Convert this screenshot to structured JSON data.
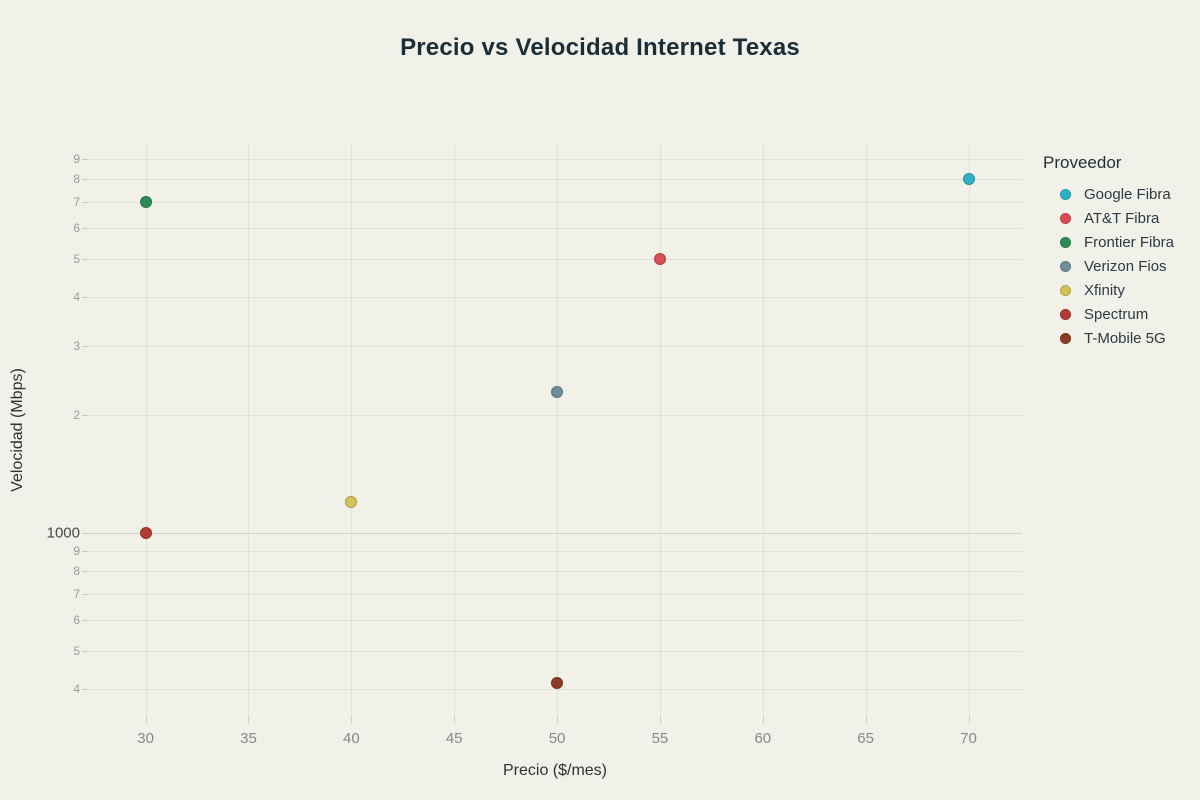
{
  "title": "Precio vs Velocidad Internet Texas",
  "chart_data": {
    "type": "scatter",
    "title": "Precio vs Velocidad Internet Texas",
    "xlabel": "Precio ($/mes)",
    "ylabel": "Velocidad (Mbps)",
    "x_scale": "linear",
    "y_scale": "log",
    "xlim": [
      27.2,
      72.6
    ],
    "ylim": [
      340,
      9900
    ],
    "grid": true,
    "x_ticks": [
      30,
      35,
      40,
      45,
      50,
      55,
      60,
      65,
      70
    ],
    "y_ticks": [
      {
        "value": 9000,
        "label": "9",
        "major": false
      },
      {
        "value": 8000,
        "label": "8",
        "major": false
      },
      {
        "value": 7000,
        "label": "7",
        "major": false
      },
      {
        "value": 6000,
        "label": "6",
        "major": false
      },
      {
        "value": 5000,
        "label": "5",
        "major": false
      },
      {
        "value": 4000,
        "label": "4",
        "major": false
      },
      {
        "value": 3000,
        "label": "3",
        "major": false
      },
      {
        "value": 2000,
        "label": "2",
        "major": false
      },
      {
        "value": 1000,
        "label": "1000",
        "major": true
      },
      {
        "value": 900,
        "label": "9",
        "major": false
      },
      {
        "value": 800,
        "label": "8",
        "major": false
      },
      {
        "value": 700,
        "label": "7",
        "major": false
      },
      {
        "value": 600,
        "label": "6",
        "major": false
      },
      {
        "value": 500,
        "label": "5",
        "major": false
      },
      {
        "value": 400,
        "label": "4",
        "major": false
      }
    ],
    "legend_title": "Proveedor",
    "legend_position": "right",
    "series": [
      {
        "name": "Google Fibra",
        "color": "#2eb1c5",
        "points": [
          {
            "x": 70,
            "y": 8000
          }
        ]
      },
      {
        "name": "AT&T Fibra",
        "color": "#d84e52",
        "points": [
          {
            "x": 55,
            "y": 5000
          }
        ]
      },
      {
        "name": "Frontier Fibra",
        "color": "#2e8a55",
        "points": [
          {
            "x": 30,
            "y": 7000
          }
        ]
      },
      {
        "name": "Verizon Fios",
        "color": "#6e8e9a",
        "points": [
          {
            "x": 50,
            "y": 2300
          }
        ]
      },
      {
        "name": "Xfinity",
        "color": "#d4c257",
        "points": [
          {
            "x": 40,
            "y": 1200
          }
        ]
      },
      {
        "name": "Spectrum",
        "color": "#b03c33",
        "points": [
          {
            "x": 30,
            "y": 1000
          }
        ]
      },
      {
        "name": "T-Mobile 5G",
        "color": "#8a3c24",
        "points": [
          {
            "x": 50,
            "y": 415
          }
        ]
      }
    ],
    "colors": {
      "background": "#f1f0e9",
      "gridline": "#e0e1d9",
      "title_text": "#1b2d36",
      "tick_text_minor": "#9b9b95",
      "tick_text_major": "#45494c",
      "axis_title_text": "#31312f",
      "legend_text": "#2c3a42"
    }
  }
}
